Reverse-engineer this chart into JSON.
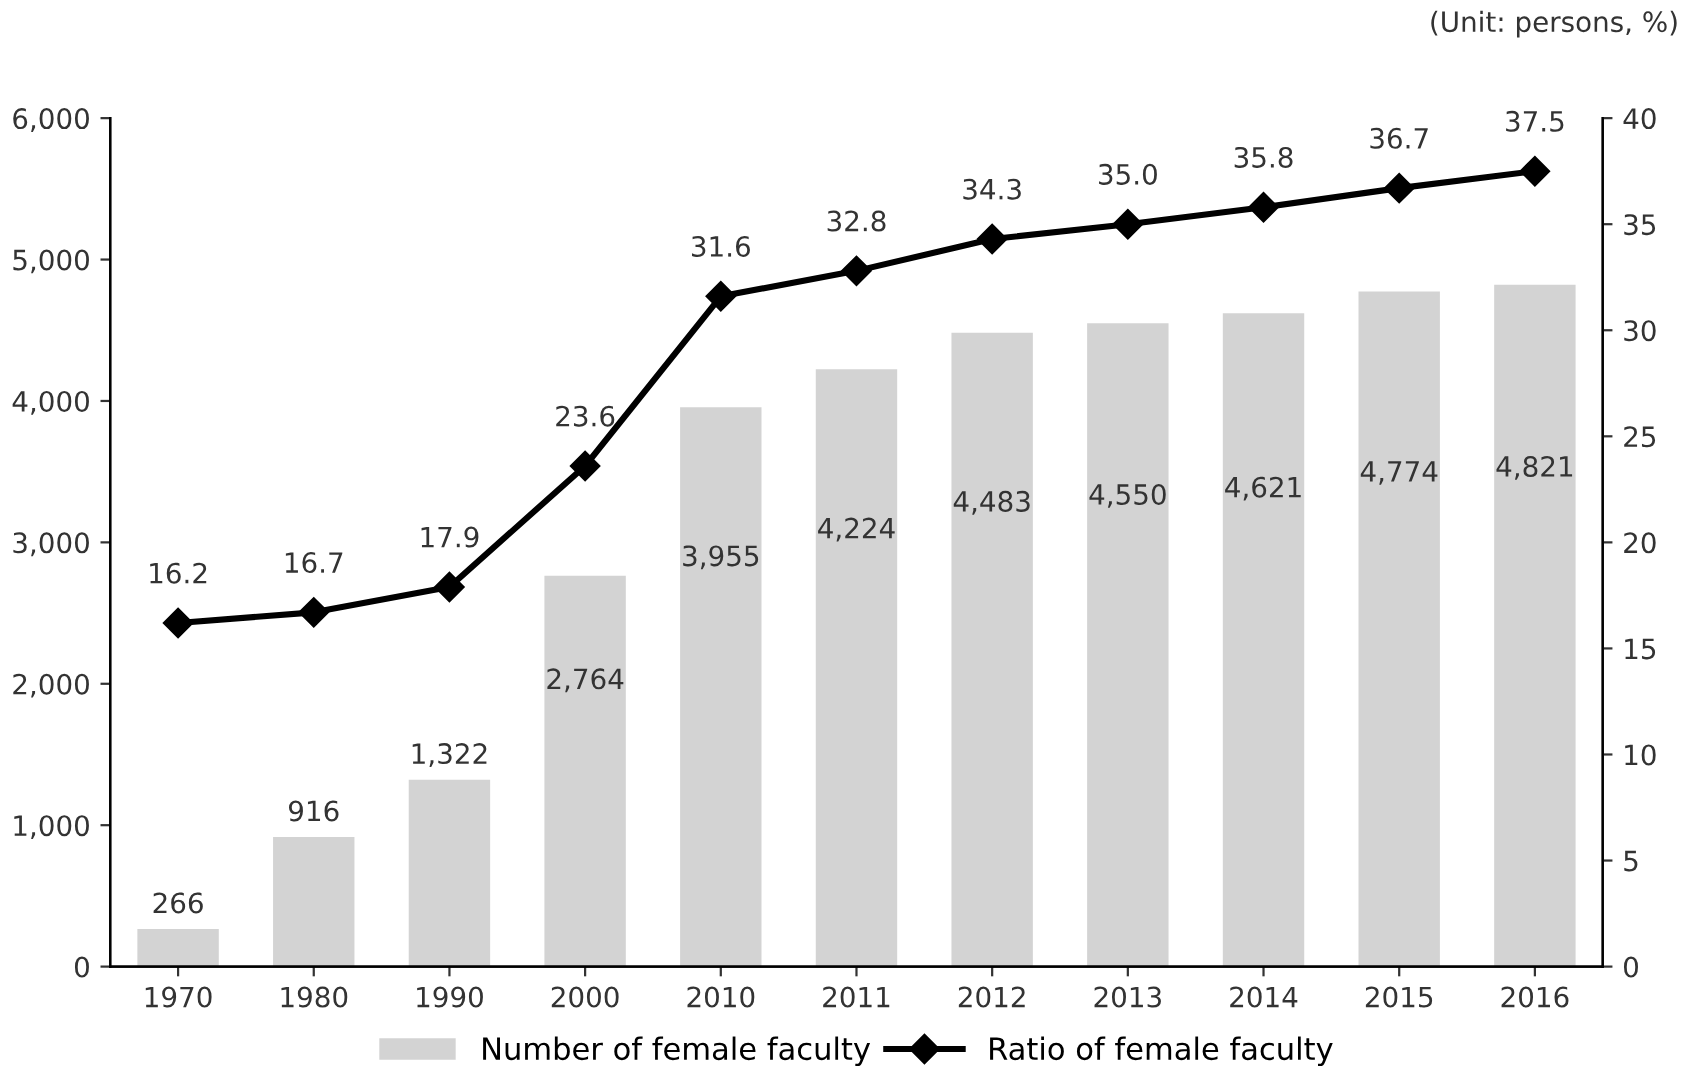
{
  "chart_data": {
    "type": "bar",
    "categories": [
      "1970",
      "1980",
      "1990",
      "2000",
      "2010",
      "2011",
      "2012",
      "2013",
      "2014",
      "2015",
      "2016"
    ],
    "series": [
      {
        "name": "Number of female faculty",
        "color": "#d3d3d3",
        "values": [
          266,
          916,
          1322,
          2764,
          3955,
          4224,
          4483,
          4550,
          4621,
          4774,
          4821
        ],
        "value_labels": [
          "266",
          "916",
          "1,322",
          "2,764",
          "3,955",
          "4,224",
          "4,483",
          "4,550",
          "4,621",
          "4,774",
          "4,821"
        ]
      },
      {
        "name": "Ratio of female faculty",
        "type": "line",
        "axis": "y2",
        "color": "#000000",
        "marker": "diamond",
        "values": [
          16.2,
          16.7,
          17.9,
          23.6,
          31.6,
          32.8,
          34.3,
          35.0,
          35.8,
          36.7,
          37.5
        ],
        "value_labels": [
          "16.2",
          "16.7",
          "17.9",
          "23.6",
          "31.6",
          "32.8",
          "34.3",
          "35.0",
          "35.8",
          "36.7",
          "37.5"
        ]
      }
    ],
    "ylim": [
      0,
      6000
    ],
    "yticks": [
      {
        "value": 0,
        "label": "0"
      },
      {
        "value": 1000,
        "label": "1,000"
      },
      {
        "value": 2000,
        "label": "2,000"
      },
      {
        "value": 3000,
        "label": "3,000"
      },
      {
        "value": 4000,
        "label": "4,000"
      },
      {
        "value": 5000,
        "label": "5,000"
      },
      {
        "value": 6000,
        "label": "6,000"
      }
    ],
    "y2lim": [
      0,
      40
    ],
    "y2ticks": [
      0,
      5,
      10,
      15,
      20,
      25,
      30,
      35,
      40
    ],
    "annotations": [
      "(Unit: persons, %)"
    ],
    "legend": "bottom",
    "grid": false
  }
}
